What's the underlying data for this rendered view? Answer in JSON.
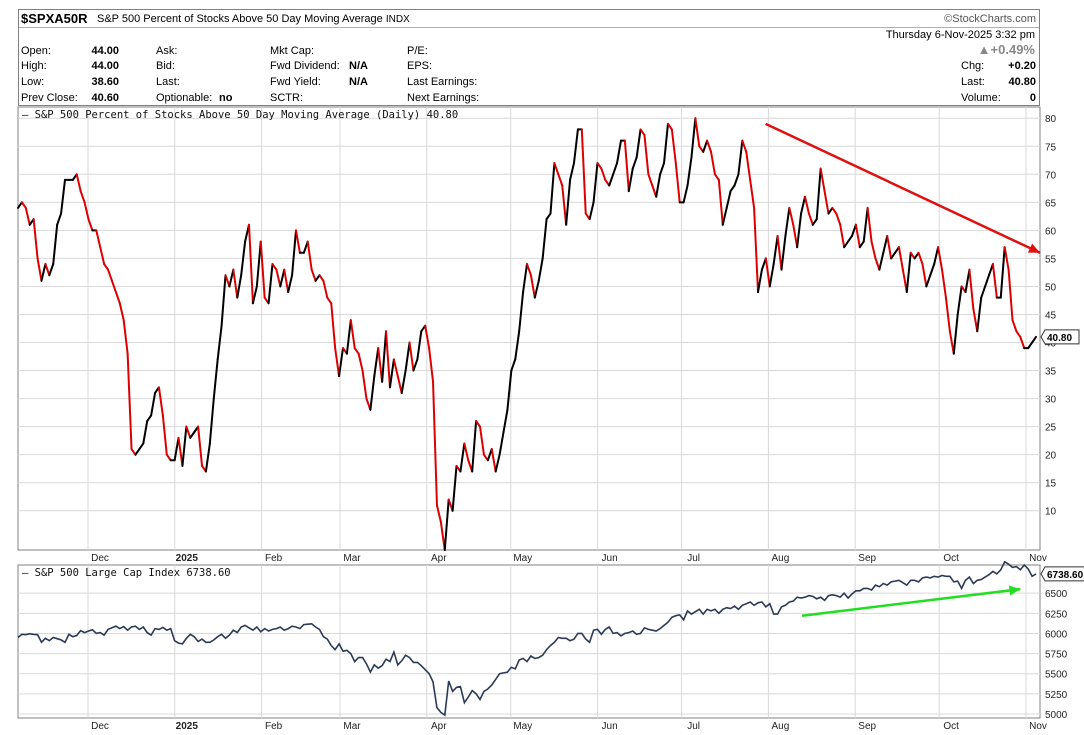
{
  "header": {
    "symbol": "$SPXA50R",
    "title": "S&P 500 Percent of Stocks Above 50 Day Moving Average",
    "exchange": "INDX",
    "brand": "©StockCharts.com",
    "date": "Thursday  6-Nov-2025  3:32 pm",
    "pct_change": "▲+0.49%",
    "fields": {
      "open_label": "Open:",
      "open": "44.00",
      "high_label": "High:",
      "high": "44.00",
      "low_label": "Low:",
      "low": "38.60",
      "prev_label": "Prev Close:",
      "prev": "40.60",
      "ask_label": "Ask:",
      "bid_label": "Bid:",
      "last_label": "Last:",
      "optionable_label": "Optionable:",
      "optionable": "no",
      "mktcap_label": "Mkt Cap:",
      "fwddiv_label": "Fwd Dividend:",
      "fwddiv": "N/A",
      "fwdyield_label": "Fwd Yield:",
      "fwdyield": "N/A",
      "sctr_label": "SCTR:",
      "pe_label": "P/E:",
      "eps_label": "EPS:",
      "lastearn_label": "Last Earnings:",
      "nextearn_label": "Next Earnings:",
      "chg_label": "Chg:",
      "chg": "+0.20",
      "last2_label": "Last:",
      "last2": "40.80",
      "volume_label": "Volume:",
      "volume": "0"
    }
  },
  "colors": {
    "up": "#000000",
    "down": "#dd0000",
    "trend_down": "#e01010",
    "trend_up": "#22dd22",
    "lower_line": "#2b3a55",
    "grid": "#d9d9d9"
  },
  "chart_data": [
    {
      "type": "line",
      "legend": "S&P 500 Percent of Stocks Above 50 Day Moving Average (Daily) 40.80",
      "last_value_label": "40.80",
      "ylim": [
        3,
        82
      ],
      "yticks": [
        10,
        15,
        20,
        25,
        30,
        35,
        40,
        45,
        50,
        55,
        60,
        65,
        70,
        75,
        80
      ],
      "x_labels": [
        "Dec",
        "2025",
        "Feb",
        "Mar",
        "Apr",
        "May",
        "Jun",
        "Jul",
        "Aug",
        "Sep",
        "Oct",
        "Nov"
      ],
      "x_label_positions": [
        0.031,
        0.083,
        0.134,
        0.182,
        0.232,
        0.279,
        0.329,
        0.378,
        0.428,
        0.477,
        0.524,
        0.574
      ],
      "values": [
        64,
        65,
        64,
        61,
        62,
        55,
        51,
        54,
        52,
        54,
        61,
        63,
        69,
        69,
        69,
        70,
        67,
        65,
        62,
        60,
        60,
        57,
        54,
        53,
        51,
        49,
        47,
        44,
        38,
        21,
        20,
        21,
        22,
        26,
        27,
        31,
        32,
        27,
        20,
        19,
        19,
        23,
        18,
        25,
        23,
        24,
        25,
        18,
        17,
        22,
        30,
        37,
        43,
        52,
        50,
        53,
        48,
        52,
        58,
        61,
        47,
        50,
        58,
        48,
        47,
        54,
        53,
        50,
        53,
        49,
        52,
        60,
        56,
        56,
        58,
        53,
        51,
        52,
        51,
        48,
        47,
        39,
        34,
        39,
        38,
        44,
        39,
        38,
        35,
        30,
        28,
        34,
        39,
        33,
        42,
        32,
        37,
        34,
        31,
        35,
        40,
        35,
        37,
        42,
        43,
        39,
        33,
        11,
        8,
        3,
        12,
        10,
        18,
        17,
        22,
        19,
        17,
        26,
        25,
        20,
        19,
        21,
        17,
        20,
        24,
        28,
        35,
        37,
        42,
        49,
        54,
        52,
        48,
        51,
        55,
        62,
        63,
        72,
        70,
        68,
        61,
        69,
        72,
        78,
        78,
        63,
        62,
        65,
        72,
        71,
        69,
        68,
        70,
        72,
        76,
        76,
        67,
        71,
        73,
        78,
        77,
        70,
        68,
        66,
        70,
        72,
        79,
        78,
        72,
        65,
        65,
        68,
        73,
        80,
        75,
        74,
        76,
        74,
        70,
        69,
        61,
        64,
        67,
        68,
        70,
        76,
        74,
        69,
        64,
        49,
        53,
        55,
        50,
        54,
        59,
        53,
        59,
        64,
        61,
        57,
        63,
        66,
        63,
        61,
        62,
        71,
        67,
        63,
        64,
        63,
        61,
        57,
        58,
        59,
        61,
        57,
        58,
        64,
        58,
        55,
        53,
        56,
        59,
        55,
        56,
        57,
        53,
        49,
        56,
        55,
        56,
        54,
        50,
        52,
        54,
        57,
        53,
        48,
        42,
        38,
        45,
        50,
        49,
        53,
        46,
        42,
        48,
        50,
        52,
        54,
        48,
        48,
        57,
        53,
        44,
        42,
        41,
        39,
        39,
        40,
        41
      ],
      "trendline": {
        "from": [
          "2025-07-31",
          79
        ],
        "to": [
          "2025-11-06",
          56
        ]
      }
    },
    {
      "type": "line",
      "legend": "S&P 500 Large Cap Index 6738.60",
      "last_value_label": "6738.60",
      "ylim": [
        4950,
        6850
      ],
      "yticks": [
        5000,
        5250,
        5500,
        5750,
        6000,
        6250,
        6500
      ],
      "x_labels": [
        "Dec",
        "2025",
        "Feb",
        "Mar",
        "Apr",
        "May",
        "Jun",
        "Jul",
        "Aug",
        "Sep",
        "Oct",
        "Nov"
      ],
      "values": [
        5950,
        5990,
        5985,
        5997,
        5988,
        5985,
        5890,
        5940,
        5910,
        5950,
        5935,
        5920,
        5890,
        5990,
        5960,
        5975,
        6035,
        6010,
        6030,
        6045,
        6000,
        6010,
        5980,
        6050,
        6070,
        6090,
        6060,
        6085,
        6040,
        6080,
        6090,
        6050,
        6080,
        6010,
        5980,
        6060,
        6050,
        6075,
        6040,
        6060,
        5910,
        5880,
        5870,
        5940,
        5990,
        5960,
        5900,
        5930,
        5890,
        5890,
        5920,
        5960,
        5990,
        5940,
        5980,
        6040,
        6010,
        6080,
        6100,
        6070,
        6040,
        6080,
        6020,
        6060,
        6030,
        6050,
        6060,
        6080,
        6040,
        6060,
        6090,
        6080,
        6060,
        6110,
        6115,
        6120,
        6080,
        6050,
        5960,
        5930,
        5850,
        5800,
        5870,
        5780,
        5790,
        5750,
        5650,
        5700,
        5700,
        5620,
        5520,
        5610,
        5570,
        5600,
        5680,
        5650,
        5770,
        5610,
        5660,
        5730,
        5700,
        5640,
        5640,
        5600,
        5550,
        5500,
        5400,
        5080,
        5020,
        4985,
        5410,
        5280,
        5330,
        5340,
        5140,
        5210,
        5290,
        5250,
        5180,
        5280,
        5310,
        5360,
        5430,
        5500,
        5510,
        5520,
        5580,
        5560,
        5670,
        5690,
        5650,
        5720,
        5690,
        5700,
        5730,
        5800,
        5850,
        5890,
        5950,
        5940,
        5940,
        5910,
        5930,
        6000,
        6000,
        5930,
        5890,
        6040,
        6050,
        5990,
        6050,
        6080,
        6000,
        6010,
        5970,
        6000,
        6010,
        6030,
        5990,
        6000,
        6070,
        6050,
        6040,
        6030,
        6060,
        6100,
        6140,
        6200,
        6220,
        6230,
        6170,
        6280,
        6240,
        6270,
        6300,
        6240,
        6300,
        6280,
        6300,
        6250,
        6300,
        6320,
        6310,
        6340,
        6300,
        6350,
        6370,
        6390,
        6350,
        6380,
        6390,
        6330,
        6370,
        6240,
        6240,
        6330,
        6350,
        6390,
        6400,
        6450,
        6440,
        6450,
        6470,
        6460,
        6430,
        6450,
        6410,
        6470,
        6480,
        6470,
        6450,
        6500,
        6440,
        6490,
        6530,
        6530,
        6560,
        6560,
        6540,
        6600,
        6580,
        6620,
        6600,
        6640,
        6650,
        6660,
        6630,
        6600,
        6660,
        6660,
        6640,
        6690,
        6700,
        6690,
        6710,
        6700,
        6720,
        6710,
        6710,
        6640,
        6650,
        6560,
        6660,
        6700,
        6620,
        6660,
        6670,
        6700,
        6730,
        6770,
        6740,
        6790,
        6890,
        6860,
        6820,
        6830,
        6790,
        6850,
        6800,
        6710,
        6740
      ],
      "trendline": {
        "from": [
          "2025-08-13",
          6220
        ],
        "to": [
          "2025-10-30",
          6550
        ]
      }
    }
  ]
}
